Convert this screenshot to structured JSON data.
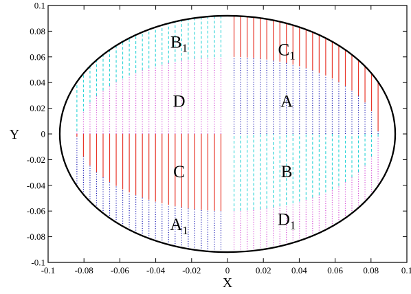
{
  "chart_data": {
    "type": "scatter",
    "title": "",
    "xlabel": "X",
    "ylabel": "Y",
    "xlim": [
      -0.1,
      0.1
    ],
    "ylim": [
      -0.1,
      0.1
    ],
    "x_ticks": [
      -0.1,
      -0.08,
      -0.06,
      -0.04,
      -0.02,
      0,
      0.02,
      0.04,
      0.06,
      0.08,
      0.1
    ],
    "y_ticks": [
      -0.1,
      -0.08,
      -0.06,
      -0.04,
      -0.02,
      0,
      0.02,
      0.04,
      0.06,
      0.08,
      0.1
    ],
    "x_tick_labels": [
      "-0.1",
      "-0.08",
      "-0.06",
      "-0.04",
      "-0.02",
      "0",
      "0.02",
      "0.04",
      "0.06",
      "0.08",
      "0.1"
    ],
    "y_tick_labels": [
      "-0.1",
      "-0.08",
      "-0.06",
      "-0.04",
      "-0.02",
      "0",
      "0.02",
      "0.04",
      "0.06",
      "0.08",
      "0.1"
    ],
    "boundary_ellipse": {
      "cx": 0,
      "cy": 0,
      "rx": 0.0935,
      "ry": 0.092,
      "color": "#000000"
    },
    "inner_ellipse": {
      "rx": 0.084,
      "ry": 0.06
    },
    "line_spacing": 0.00365,
    "colors": {
      "red": "#e8362a",
      "cyan": "#29d3d6",
      "blue": "#1c1cb4",
      "magenta": "#d651d6"
    },
    "regions": [
      {
        "label": "A",
        "sub": "",
        "x": 0.033,
        "y": 0.026,
        "color": "#1c1cb4",
        "style": "dotted"
      },
      {
        "label": "B",
        "sub": "",
        "x": 0.033,
        "y": -0.029,
        "color": "#29d3d6",
        "style": "dashed"
      },
      {
        "label": "C",
        "sub": "",
        "x": -0.027,
        "y": -0.029,
        "color": "#e8362a",
        "style": "solid"
      },
      {
        "label": "D",
        "sub": "",
        "x": -0.027,
        "y": 0.026,
        "color": "#d651d6",
        "style": "dotted"
      },
      {
        "label": "A",
        "sub": "1",
        "x": -0.027,
        "y": -0.07,
        "color": "#1c1cb4",
        "style": "dotted"
      },
      {
        "label": "B",
        "sub": "1",
        "x": -0.027,
        "y": 0.072,
        "color": "#29d3d6",
        "style": "dashed"
      },
      {
        "label": "C",
        "sub": "1",
        "x": 0.033,
        "y": 0.066,
        "color": "#e8362a",
        "style": "solid"
      },
      {
        "label": "D",
        "sub": "1",
        "x": 0.033,
        "y": -0.066,
        "color": "#d651d6",
        "style": "dotted"
      }
    ]
  }
}
